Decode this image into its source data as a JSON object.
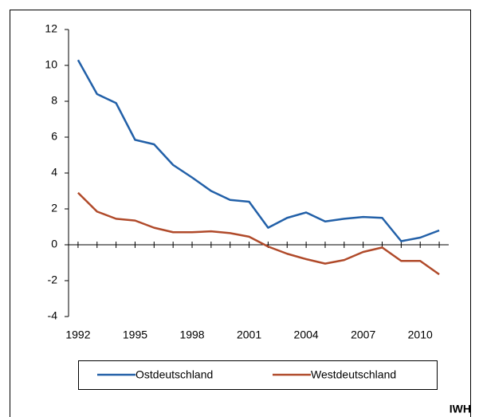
{
  "chart_data": {
    "type": "line",
    "x": [
      1992,
      1993,
      1994,
      1995,
      1996,
      1997,
      1998,
      1999,
      2000,
      2001,
      2002,
      2003,
      2004,
      2005,
      2006,
      2007,
      2008,
      2009,
      2010,
      2011
    ],
    "series": [
      {
        "name": "Ostdeutschland",
        "color": "#2260a8",
        "values": [
          10.3,
          8.4,
          7.9,
          5.85,
          5.6,
          4.45,
          3.75,
          3.0,
          2.5,
          2.4,
          0.95,
          1.5,
          1.8,
          1.3,
          1.45,
          1.55,
          1.5,
          0.2,
          0.4,
          0.8
        ]
      },
      {
        "name": "Westdeutschland",
        "color": "#b04a2a",
        "values": [
          2.9,
          1.85,
          1.45,
          1.35,
          0.95,
          0.7,
          0.7,
          0.75,
          0.65,
          0.45,
          -0.1,
          -0.5,
          -0.8,
          -1.05,
          -0.85,
          -0.4,
          -0.15,
          -0.9,
          -0.9,
          -1.65
        ]
      }
    ],
    "xlim": [
      1991.5,
      2011.5
    ],
    "xticks": [
      1992,
      1995,
      1998,
      2001,
      2004,
      2007,
      2010
    ],
    "ylim": [
      -4,
      12
    ],
    "yticks": [
      -4,
      -2,
      0,
      2,
      4,
      6,
      8,
      10,
      12
    ],
    "grid": false,
    "legend": "bottom",
    "source": "IWH"
  }
}
